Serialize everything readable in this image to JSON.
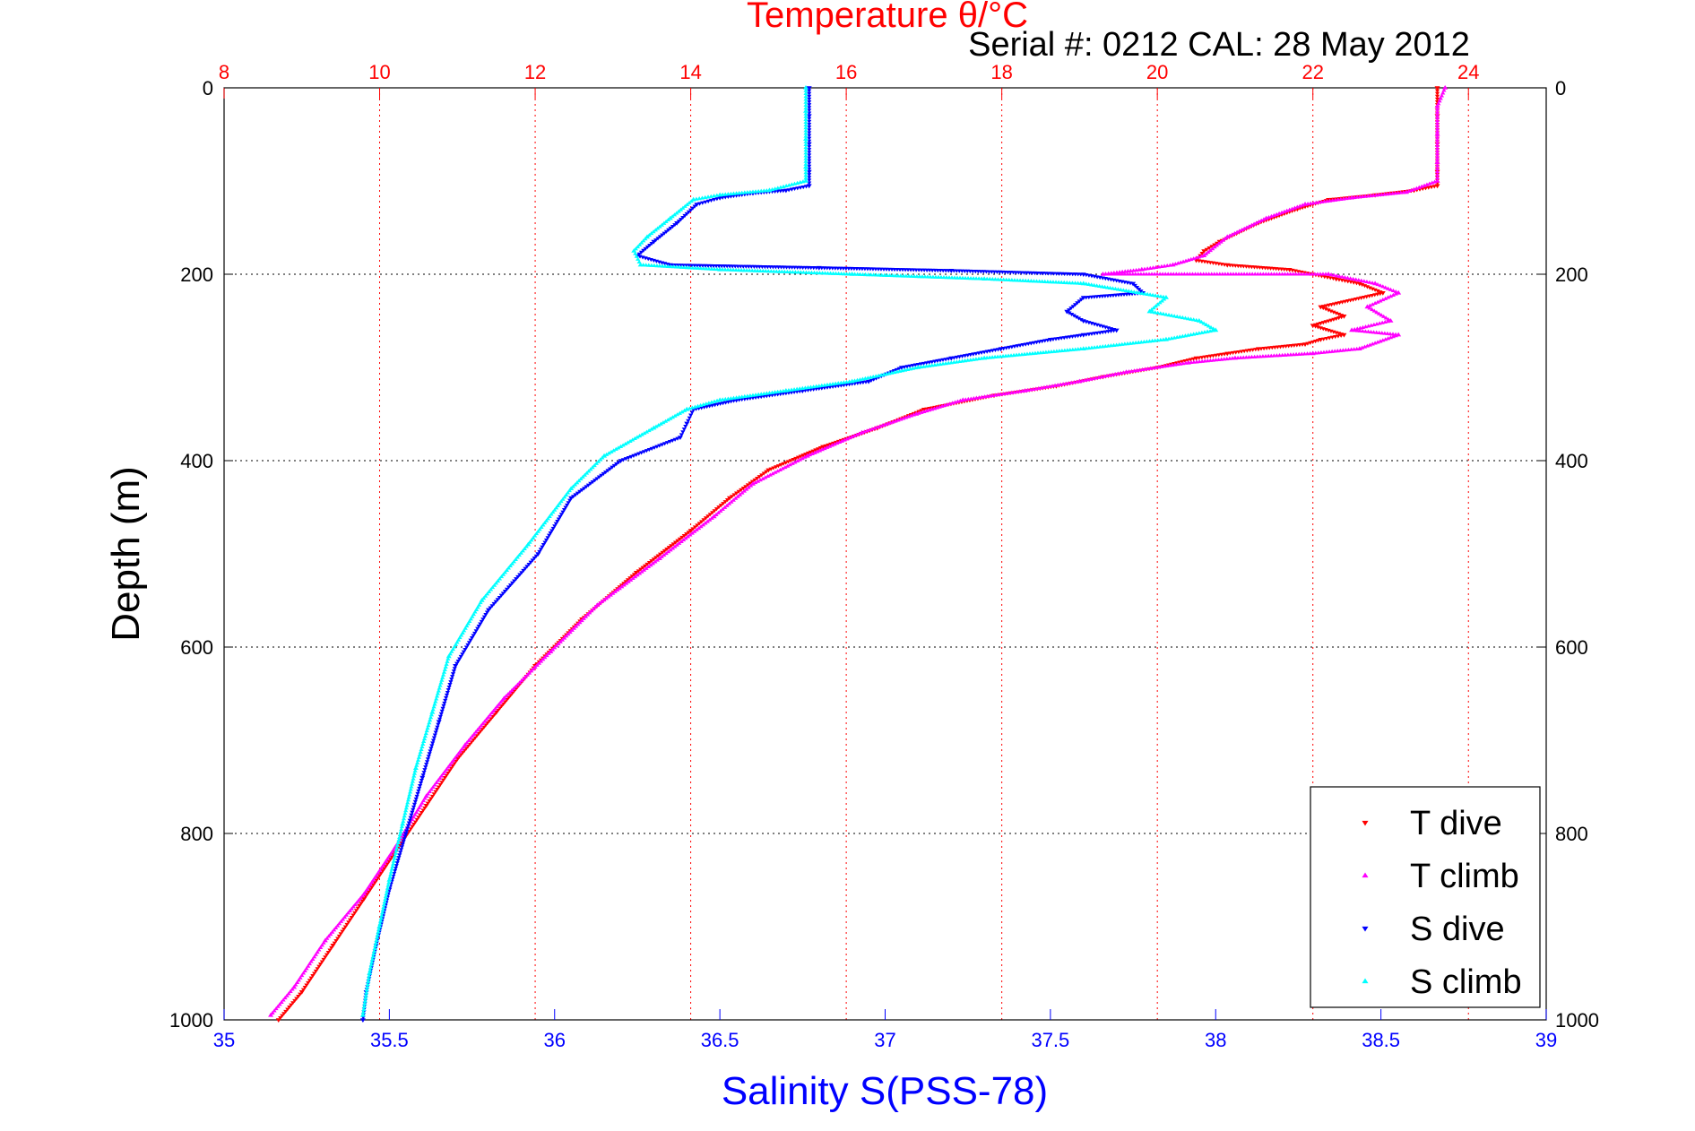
{
  "chart_data": {
    "type": "scatter",
    "title": "Temperature θ/°C",
    "subtitle": "Serial #: 0212  CAL: 28 May 2012",
    "ylabel": "Depth (m)",
    "xlabel_bottom": "Salinity S(PSS-78)",
    "xlabel_top": "Temperature θ/°C",
    "y_reversed": true,
    "ylim": [
      0,
      1000
    ],
    "y_ticks": [
      0,
      200,
      400,
      600,
      800,
      1000
    ],
    "temperature_axis": {
      "lim": [
        8,
        25
      ],
      "ticks": [
        8,
        10,
        12,
        14,
        16,
        18,
        20,
        22,
        24
      ],
      "color": "#ff0000"
    },
    "salinity_axis": {
      "lim": [
        35,
        39
      ],
      "ticks": [
        35,
        35.5,
        36,
        36.5,
        37,
        37.5,
        38,
        38.5,
        39
      ],
      "color": "#0000ff"
    },
    "grid": true,
    "legend_position": "bottom-right",
    "series": [
      {
        "name": "T dive",
        "axis": "temperature",
        "color": "#ff0000",
        "marker": "triangle-down",
        "points": [
          [
            23.6,
            0
          ],
          [
            23.6,
            30
          ],
          [
            23.6,
            60
          ],
          [
            23.6,
            90
          ],
          [
            23.6,
            105
          ],
          [
            23.3,
            110
          ],
          [
            22.8,
            115
          ],
          [
            22.2,
            120
          ],
          [
            21.8,
            130
          ],
          [
            21.3,
            145
          ],
          [
            20.8,
            165
          ],
          [
            20.6,
            175
          ],
          [
            20.5,
            185
          ],
          [
            20.9,
            190
          ],
          [
            21.7,
            195
          ],
          [
            22.0,
            200
          ],
          [
            22.3,
            205
          ],
          [
            22.6,
            210
          ],
          [
            22.9,
            220
          ],
          [
            22.1,
            235
          ],
          [
            22.4,
            245
          ],
          [
            22.0,
            255
          ],
          [
            22.4,
            265
          ],
          [
            22.1,
            270
          ],
          [
            21.9,
            275
          ],
          [
            21.3,
            280
          ],
          [
            20.9,
            285
          ],
          [
            20.5,
            290
          ],
          [
            20.0,
            300
          ],
          [
            19.3,
            310
          ],
          [
            18.7,
            320
          ],
          [
            17.9,
            330
          ],
          [
            17.0,
            345
          ],
          [
            16.4,
            365
          ],
          [
            15.7,
            385
          ],
          [
            15.0,
            410
          ],
          [
            14.5,
            440
          ],
          [
            14.0,
            475
          ],
          [
            13.3,
            520
          ],
          [
            12.6,
            570
          ],
          [
            12.0,
            620
          ],
          [
            11.5,
            670
          ],
          [
            11.0,
            720
          ],
          [
            10.6,
            770
          ],
          [
            10.2,
            820
          ],
          [
            9.8,
            870
          ],
          [
            9.4,
            920
          ],
          [
            9.0,
            970
          ],
          [
            8.7,
            1000
          ]
        ]
      },
      {
        "name": "T climb",
        "axis": "temperature",
        "color": "#ff00ff",
        "marker": "triangle-up",
        "points": [
          [
            23.7,
            0
          ],
          [
            23.6,
            20
          ],
          [
            23.6,
            50
          ],
          [
            23.6,
            80
          ],
          [
            23.6,
            100
          ],
          [
            23.2,
            112
          ],
          [
            22.5,
            118
          ],
          [
            21.9,
            125
          ],
          [
            21.4,
            140
          ],
          [
            20.9,
            160
          ],
          [
            20.6,
            180
          ],
          [
            20.2,
            190
          ],
          [
            19.8,
            195
          ],
          [
            19.3,
            200
          ],
          [
            22.2,
            200
          ],
          [
            22.8,
            210
          ],
          [
            23.1,
            220
          ],
          [
            22.7,
            235
          ],
          [
            23.0,
            250
          ],
          [
            22.5,
            260
          ],
          [
            23.1,
            265
          ],
          [
            22.6,
            280
          ],
          [
            22.0,
            285
          ],
          [
            21.0,
            290
          ],
          [
            20.4,
            295
          ],
          [
            19.6,
            305
          ],
          [
            19.0,
            315
          ],
          [
            18.3,
            325
          ],
          [
            17.5,
            335
          ],
          [
            16.9,
            350
          ],
          [
            16.2,
            370
          ],
          [
            15.5,
            395
          ],
          [
            14.8,
            425
          ],
          [
            14.3,
            460
          ],
          [
            13.6,
            505
          ],
          [
            12.8,
            555
          ],
          [
            12.2,
            605
          ],
          [
            11.6,
            655
          ],
          [
            11.1,
            705
          ],
          [
            10.6,
            760
          ],
          [
            10.2,
            815
          ],
          [
            9.8,
            865
          ],
          [
            9.3,
            915
          ],
          [
            8.9,
            965
          ],
          [
            8.6,
            995
          ]
        ]
      },
      {
        "name": "S dive",
        "axis": "salinity",
        "color": "#0000ff",
        "marker": "triangle-down",
        "points": [
          [
            36.77,
            0
          ],
          [
            36.77,
            30
          ],
          [
            36.77,
            60
          ],
          [
            36.77,
            90
          ],
          [
            36.77,
            105
          ],
          [
            36.7,
            110
          ],
          [
            36.6,
            113
          ],
          [
            36.5,
            118
          ],
          [
            36.43,
            125
          ],
          [
            36.37,
            145
          ],
          [
            36.3,
            165
          ],
          [
            36.25,
            180
          ],
          [
            36.35,
            190
          ],
          [
            36.8,
            193
          ],
          [
            37.2,
            196
          ],
          [
            37.6,
            200
          ],
          [
            37.75,
            210
          ],
          [
            37.78,
            220
          ],
          [
            37.6,
            225
          ],
          [
            37.55,
            240
          ],
          [
            37.6,
            250
          ],
          [
            37.7,
            260
          ],
          [
            37.6,
            265
          ],
          [
            37.5,
            270
          ],
          [
            37.35,
            280
          ],
          [
            37.2,
            290
          ],
          [
            37.05,
            300
          ],
          [
            36.95,
            315
          ],
          [
            36.75,
            325
          ],
          [
            36.55,
            335
          ],
          [
            36.42,
            345
          ],
          [
            36.4,
            360
          ],
          [
            36.38,
            375
          ],
          [
            36.2,
            400
          ],
          [
            36.05,
            440
          ],
          [
            35.95,
            500
          ],
          [
            35.8,
            560
          ],
          [
            35.7,
            620
          ],
          [
            35.65,
            680
          ],
          [
            35.6,
            740
          ],
          [
            35.55,
            800
          ],
          [
            35.5,
            860
          ],
          [
            35.46,
            920
          ],
          [
            35.43,
            970
          ],
          [
            35.42,
            1000
          ]
        ]
      },
      {
        "name": "S climb",
        "axis": "salinity",
        "color": "#00ffff",
        "marker": "triangle-up",
        "points": [
          [
            36.76,
            0
          ],
          [
            36.76,
            25
          ],
          [
            36.76,
            55
          ],
          [
            36.76,
            85
          ],
          [
            36.76,
            100
          ],
          [
            36.65,
            110
          ],
          [
            36.5,
            115
          ],
          [
            36.42,
            120
          ],
          [
            36.35,
            140
          ],
          [
            36.28,
            160
          ],
          [
            36.24,
            175
          ],
          [
            36.26,
            190
          ],
          [
            36.5,
            195
          ],
          [
            36.9,
            200
          ],
          [
            37.3,
            205
          ],
          [
            37.6,
            210
          ],
          [
            37.85,
            225
          ],
          [
            37.8,
            240
          ],
          [
            37.95,
            250
          ],
          [
            38.0,
            260
          ],
          [
            37.85,
            270
          ],
          [
            37.6,
            280
          ],
          [
            37.3,
            290
          ],
          [
            37.1,
            300
          ],
          [
            36.9,
            315
          ],
          [
            36.7,
            325
          ],
          [
            36.5,
            335
          ],
          [
            36.4,
            345
          ],
          [
            36.3,
            365
          ],
          [
            36.15,
            395
          ],
          [
            36.05,
            430
          ],
          [
            35.92,
            490
          ],
          [
            35.78,
            550
          ],
          [
            35.68,
            610
          ],
          [
            35.63,
            670
          ],
          [
            35.58,
            730
          ],
          [
            35.54,
            790
          ],
          [
            35.5,
            850
          ],
          [
            35.47,
            900
          ],
          [
            35.44,
            950
          ],
          [
            35.42,
            995
          ]
        ]
      }
    ]
  }
}
